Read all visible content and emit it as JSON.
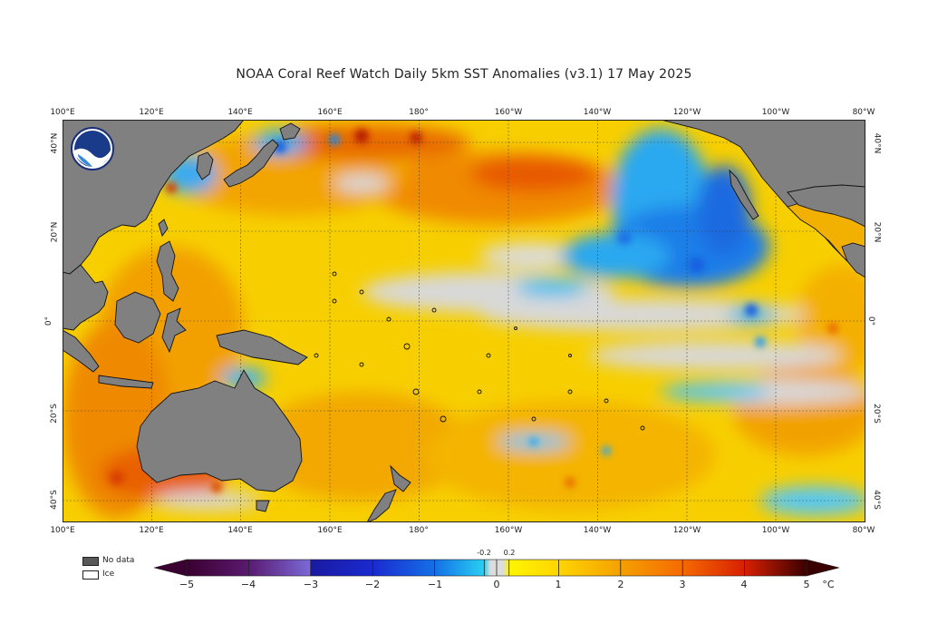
{
  "title": "NOAA Coral Reef Watch Daily 5km SST Anomalies  (v3.1)   17 May 2025",
  "logo": {
    "text": "NOAA",
    "icon": "noaa-logo-icon"
  },
  "longitudes": [
    "100°E",
    "120°E",
    "140°E",
    "160°E",
    "180°",
    "160°W",
    "140°W",
    "120°W",
    "100°W",
    "80°W"
  ],
  "latitudes_top_to_bottom": [
    "40°N",
    "20°N",
    "0°",
    "20°S",
    "40°S"
  ],
  "legend": {
    "no_data": "No data",
    "ice": "Ice",
    "no_data_color": "#585858",
    "ice_color": "#ffffff"
  },
  "colorbar": {
    "ticks": [
      "−5",
      "−4",
      "−3",
      "−2",
      "−1",
      "0",
      "1",
      "2",
      "3",
      "4",
      "5"
    ],
    "small_ticks": [
      "-0.2",
      "0.2"
    ],
    "unit": "°C",
    "colors": {
      "-5": "#3a0030",
      "-4": "#5a1a70",
      "-3": "#1a1aa0",
      "-2": "#1470e6",
      "-1": "#28c8f0",
      "0": "#dcdcdc",
      "1": "#ffe600",
      "2": "#f5a500",
      "3": "#f56a00",
      "4": "#d02000",
      "5": "#3a0000"
    }
  },
  "map_colors": {
    "land": "#808080",
    "coast": "#111111",
    "grid": "#444444",
    "neutral": "#d8d8d8",
    "warm": "#f7d000",
    "warmer": "#f2a200",
    "hot": "#e86000",
    "cold": "#2aa0ee",
    "colder": "#1560e0"
  }
}
